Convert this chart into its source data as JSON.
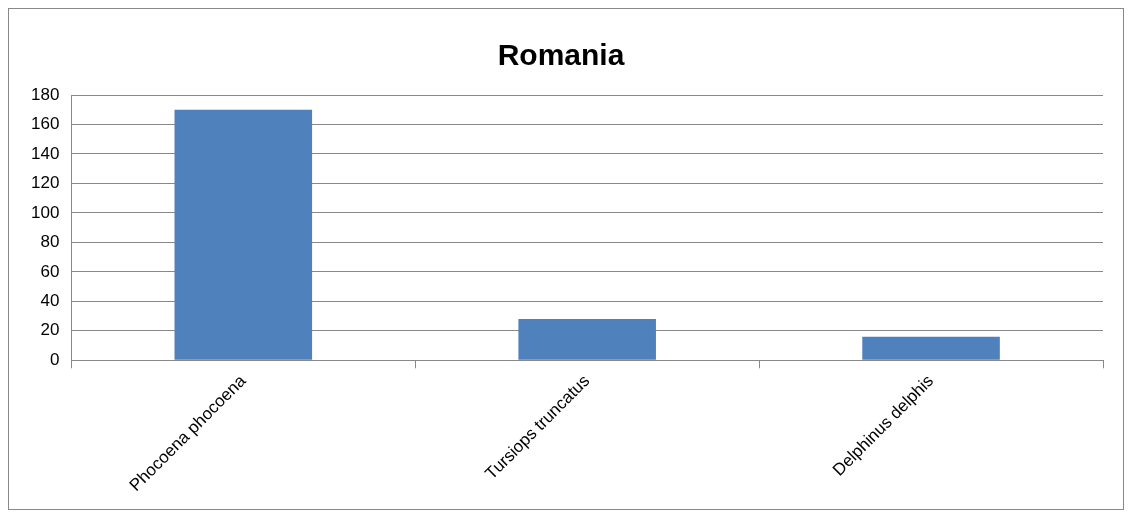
{
  "chart_data": {
    "type": "bar",
    "title": "Romania",
    "categories": [
      "Phocoena phocoena",
      "Tursiops truncatus",
      "Delphinus delphis"
    ],
    "series": [
      {
        "color": "#4f81bd",
        "values": [
          170,
          28,
          16
        ]
      }
    ],
    "ylim": [
      0,
      180
    ],
    "yticks": [
      0,
      20,
      40,
      60,
      80,
      100,
      120,
      140,
      160,
      180
    ],
    "grid": "y",
    "legend": false
  }
}
